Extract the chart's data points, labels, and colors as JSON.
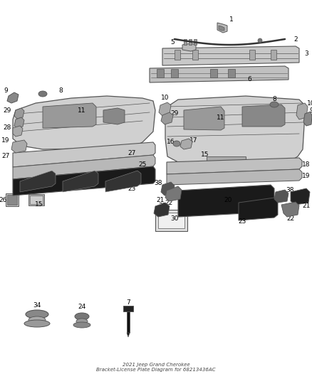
{
  "title": "2021 Jeep Grand Cherokee\nBracket-License Plate Diagram for 68213436AC",
  "background_color": "#ffffff",
  "fig_width": 4.38,
  "fig_height": 5.33,
  "dpi": 100,
  "line_color": "#555555",
  "text_color": "#000000",
  "part_fill": "#d8d8d8",
  "part_fill_dark": "#444444",
  "part_fill_med": "#aaaaaa"
}
